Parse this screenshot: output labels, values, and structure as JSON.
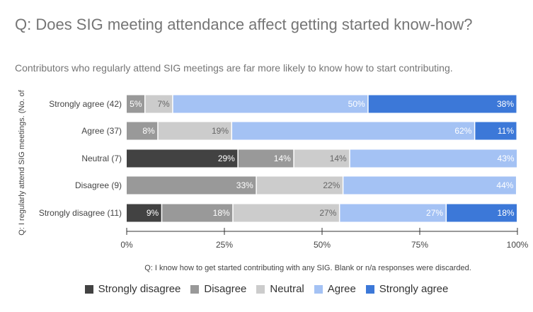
{
  "title": "Q: Does SIG meeting attendance affect getting started know-how?",
  "subtitle": "Contributors who regularly attend SIG meetings are far more likely to know how to start contributing.",
  "chart_data": {
    "type": "bar",
    "orientation": "horizontal",
    "stacked": "percent",
    "xlabel": "Q: I know how to get started contributing with any SIG. Blank or n/a responses were discarded.",
    "ylabel": "Q: I regularly attend SIG meetings. (No. of",
    "xlim": [
      0,
      100
    ],
    "xticks": [
      "0%",
      "25%",
      "50%",
      "75%",
      "100%"
    ],
    "categories": [
      "Strongly agree (42)",
      "Agree (37)",
      "Neutral (7)",
      "Disagree (9)",
      "Strongly disagree (11)"
    ],
    "series": [
      {
        "name": "Strongly disagree",
        "color": "#424242",
        "label_color": "#ffffff",
        "values": [
          0,
          0,
          28.6,
          0,
          9.1
        ]
      },
      {
        "name": "Disagree",
        "color": "#999999",
        "label_color": "#ffffff",
        "values": [
          4.8,
          8.1,
          14.3,
          33.3,
          18.2
        ]
      },
      {
        "name": "Neutral",
        "color": "#cccccc",
        "label_color": "#666666",
        "values": [
          7.1,
          18.9,
          14.3,
          22.2,
          27.3
        ]
      },
      {
        "name": "Agree",
        "color": "#a4c2f4",
        "label_color": "#ffffff",
        "values": [
          50,
          62.2,
          42.9,
          44.4,
          27.3
        ]
      },
      {
        "name": "Strongly agree",
        "color": "#3c78d8",
        "label_color": "#ffffff",
        "values": [
          38.1,
          10.8,
          0,
          0,
          18.2
        ]
      }
    ],
    "legend": "bottom",
    "grid": false
  }
}
